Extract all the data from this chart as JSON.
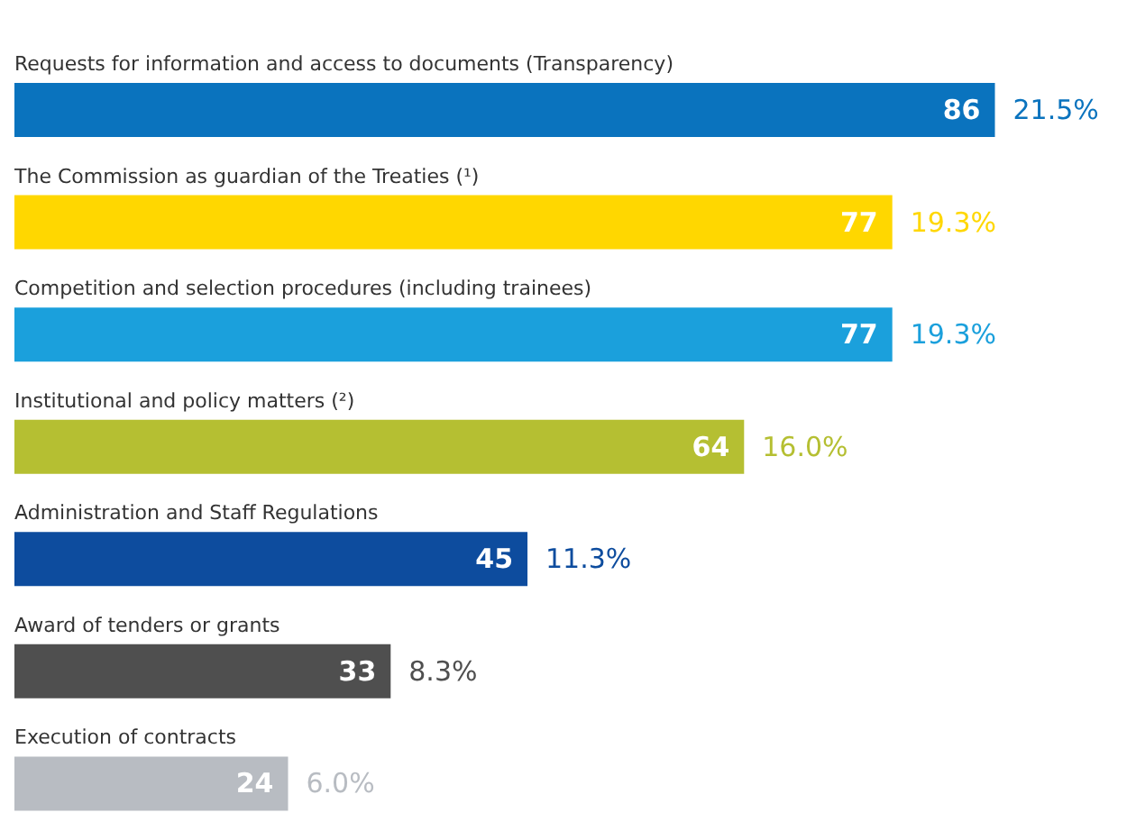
{
  "chart_data": {
    "type": "bar",
    "orientation": "horizontal",
    "categories": [
      "Requests for information and access to documents (Transparency)",
      "The Commission as guardian of the Treaties (¹)",
      "Competition and selection procedures (including trainees)",
      "Institutional and policy matters (²)",
      "Administration and Staff Regulations",
      "Award of tenders or grants",
      "Execution of contracts"
    ],
    "values": [
      86,
      77,
      77,
      64,
      45,
      33,
      24
    ],
    "colors": [
      "#0a73be",
      "#ffd700",
      "#1ba0dc",
      "#b5bf32",
      "#0d4c9e",
      "#4f4f4f",
      "#b8bcc2"
    ],
    "data_labels": true,
    "annotations": [
      {
        "text": "21.5%",
        "x": 86,
        "y": "Requests for information and access to documents (Transparency)"
      },
      {
        "text": "19.3%",
        "x": 77,
        "y": "The Commission as guardian of the Treaties (¹)"
      },
      {
        "text": "19.3%",
        "x": 77,
        "y": "Competition and selection procedures (including trainees)"
      },
      {
        "text": "16.0%",
        "x": 64,
        "y": "Institutional and policy matters (²)"
      },
      {
        "text": "11.3%",
        "x": 45,
        "y": "Administration and Staff Regulations"
      },
      {
        "text": "8.3%",
        "x": 33,
        "y": "Award of tenders or grants"
      },
      {
        "text": "6.0%",
        "x": 24,
        "y": "Execution of contracts"
      }
    ]
  }
}
